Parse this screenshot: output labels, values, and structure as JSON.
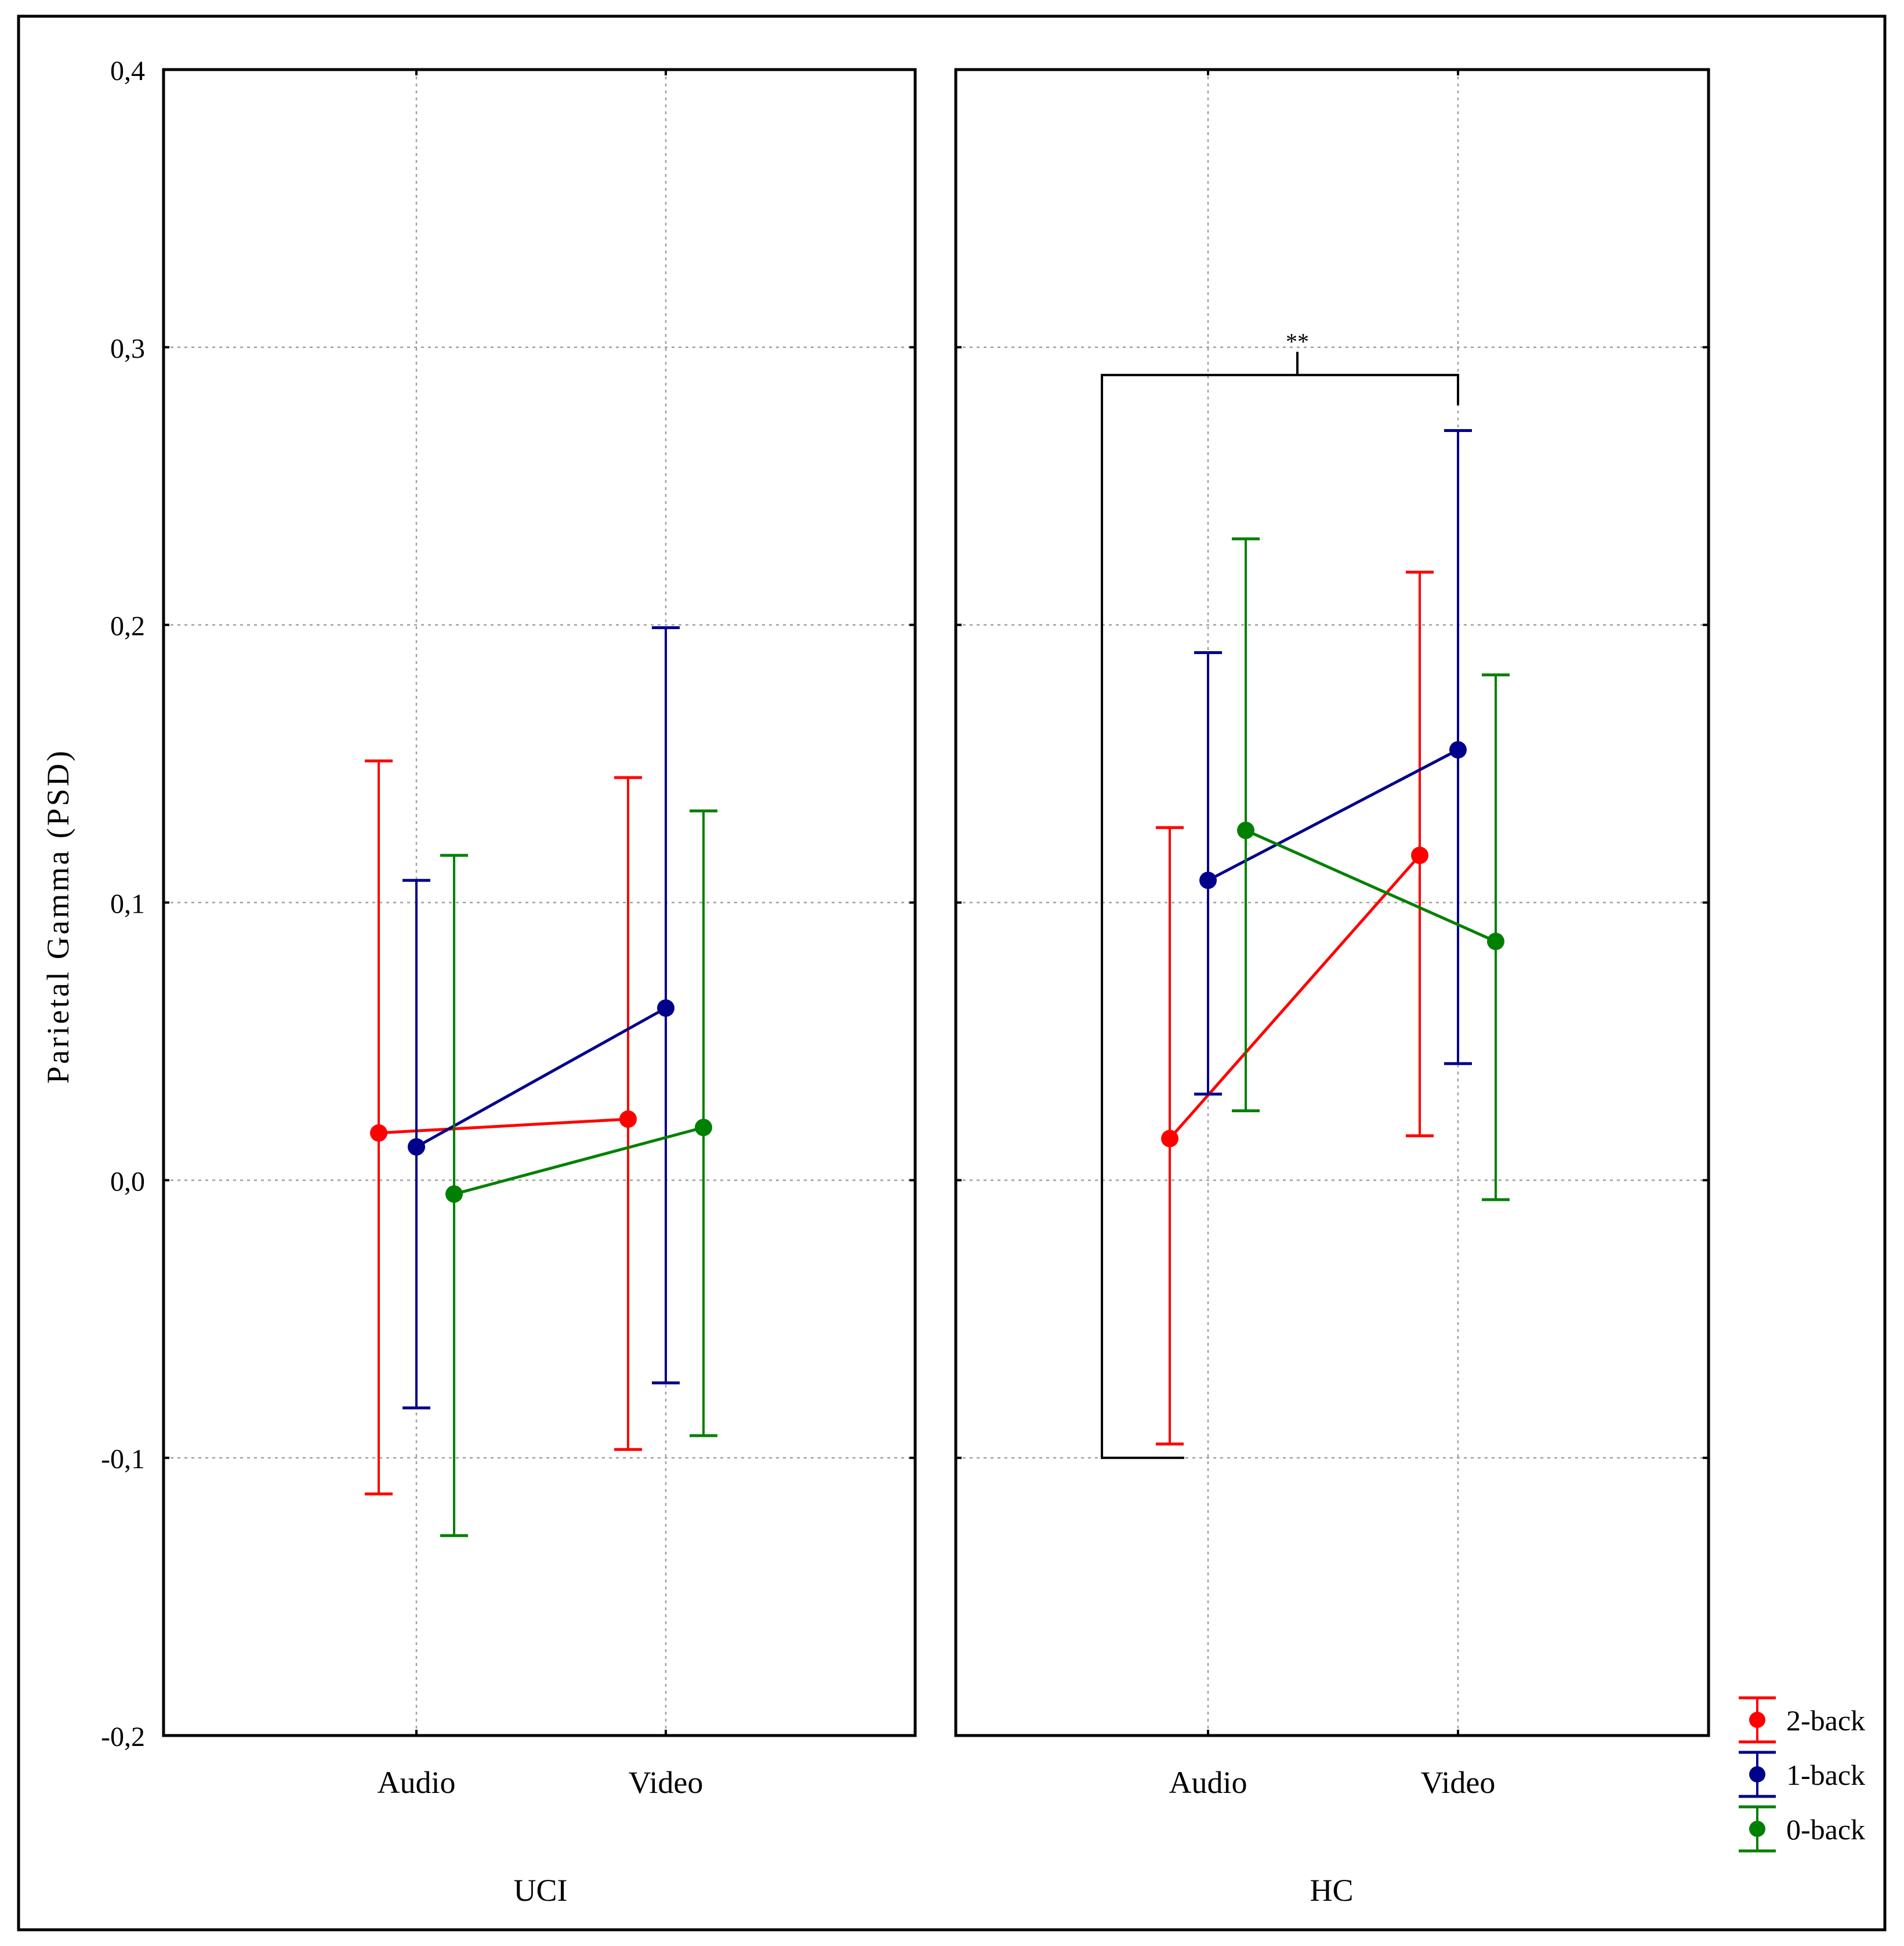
{
  "chart_data": {
    "type": "line",
    "ylabel": "Parietal Gamma (PSD)",
    "ylim": [
      -0.2,
      0.4
    ],
    "yticks": [
      {
        "value": 0.4,
        "label": "0,4"
      },
      {
        "value": 0.3,
        "label": "0,3"
      },
      {
        "value": 0.2,
        "label": "0,2"
      },
      {
        "value": 0.1,
        "label": "0,1"
      },
      {
        "value": 0.0,
        "label": "0,0"
      },
      {
        "value": -0.1,
        "label": "-0,1"
      },
      {
        "value": -0.2,
        "label": "-0,2"
      }
    ],
    "grid": true,
    "legend_position": "bottom-right",
    "categories": [
      "Audio",
      "Video"
    ],
    "panels": [
      {
        "group": "UCI",
        "series": [
          {
            "name": "2-back",
            "color": "#ff0000",
            "mean": [
              0.017,
              0.022
            ],
            "upper": [
              0.151,
              0.145
            ],
            "lower": [
              -0.113,
              -0.097
            ]
          },
          {
            "name": "1-back",
            "color": "#00008b",
            "mean": [
              0.012,
              0.062
            ],
            "upper": [
              0.108,
              0.199
            ],
            "lower": [
              -0.082,
              -0.073
            ]
          },
          {
            "name": "0-back",
            "color": "#008000",
            "mean": [
              -0.005,
              0.019
            ],
            "upper": [
              0.117,
              0.133
            ],
            "lower": [
              -0.128,
              -0.092
            ]
          }
        ]
      },
      {
        "group": "HC",
        "series": [
          {
            "name": "2-back",
            "color": "#ff0000",
            "mean": [
              0.015,
              0.117
            ],
            "upper": [
              0.127,
              0.219
            ],
            "lower": [
              -0.095,
              0.016
            ]
          },
          {
            "name": "1-back",
            "color": "#00008b",
            "mean": [
              0.108,
              0.155
            ],
            "upper": [
              0.19,
              0.27
            ],
            "lower": [
              0.031,
              0.042
            ]
          },
          {
            "name": "0-back",
            "color": "#008000",
            "mean": [
              0.126,
              0.086
            ],
            "upper": [
              0.231,
              0.182
            ],
            "lower": [
              0.025,
              -0.007
            ]
          }
        ],
        "significance": {
          "label": "**",
          "y_top": 0.29,
          "y_bottom": -0.1
        }
      }
    ],
    "legend": [
      {
        "name": "2-back",
        "color": "#ff0000"
      },
      {
        "name": "1-back",
        "color": "#00008b"
      },
      {
        "name": "0-back",
        "color": "#008000"
      }
    ]
  }
}
